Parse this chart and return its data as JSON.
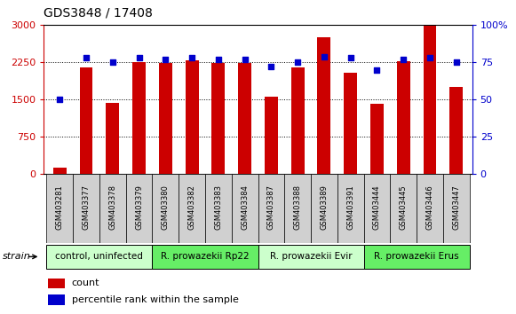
{
  "title": "GDS3848 / 17408",
  "samples": [
    "GSM403281",
    "GSM403377",
    "GSM403378",
    "GSM403379",
    "GSM403380",
    "GSM403382",
    "GSM403383",
    "GSM403384",
    "GSM403387",
    "GSM403388",
    "GSM403389",
    "GSM403391",
    "GSM403444",
    "GSM403445",
    "GSM403446",
    "GSM403447"
  ],
  "counts": [
    130,
    2150,
    1430,
    2250,
    2230,
    2300,
    2230,
    2230,
    1560,
    2150,
    2750,
    2050,
    1420,
    2280,
    2980,
    1750
  ],
  "percentiles": [
    50,
    78,
    75,
    78,
    77,
    78,
    77,
    77,
    72,
    75,
    79,
    78,
    70,
    77,
    78,
    75
  ],
  "bar_color": "#cc0000",
  "dot_color": "#0000cc",
  "yticks_left": [
    0,
    750,
    1500,
    2250,
    3000
  ],
  "yticks_right": [
    0,
    25,
    50,
    75,
    100
  ],
  "ylim_left": [
    0,
    3000
  ],
  "ylim_right": [
    0,
    100
  ],
  "groups": [
    {
      "label": "control, uninfected",
      "start": 0,
      "end": 4,
      "color": "#ccffcc"
    },
    {
      "label": "R. prowazekii Rp22",
      "start": 4,
      "end": 8,
      "color": "#66ee66"
    },
    {
      "label": "R. prowazekii Evir",
      "start": 8,
      "end": 12,
      "color": "#ccffcc"
    },
    {
      "label": "R. prowazekii Erus",
      "start": 12,
      "end": 16,
      "color": "#66ee66"
    }
  ],
  "bg_color": "#ffffff",
  "plot_bg": "#ffffff",
  "xtick_box_color": "#d0d0d0",
  "legend_count_color": "#cc0000",
  "legend_dot_color": "#0000cc",
  "strain_label": "strain",
  "left_axis_color": "#cc0000",
  "right_axis_color": "#0000cc",
  "title_fontsize": 10,
  "bar_width": 0.5
}
